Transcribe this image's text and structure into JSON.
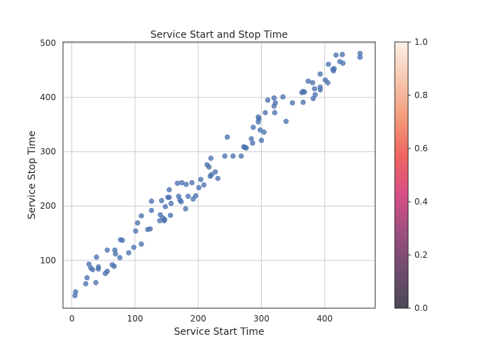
{
  "chart_data": {
    "type": "scatter",
    "title": "Service Start and Stop Time",
    "xlabel": "Service Start Time",
    "ylabel": "Service Stop Time",
    "xlim": [
      -14,
      480
    ],
    "ylim": [
      12,
      502
    ],
    "xticks": [
      0,
      100,
      200,
      300,
      400
    ],
    "yticks": [
      100,
      200,
      300,
      400,
      500
    ],
    "grid": true,
    "marker_color": "#4c72b0",
    "points": [
      {
        "x": 5,
        "y": 35
      },
      {
        "x": 6,
        "y": 42
      },
      {
        "x": 22,
        "y": 57
      },
      {
        "x": 24,
        "y": 68
      },
      {
        "x": 27,
        "y": 93
      },
      {
        "x": 30,
        "y": 86
      },
      {
        "x": 33,
        "y": 83
      },
      {
        "x": 38,
        "y": 59
      },
      {
        "x": 39,
        "y": 106
      },
      {
        "x": 42,
        "y": 88
      },
      {
        "x": 42,
        "y": 84
      },
      {
        "x": 53,
        "y": 76
      },
      {
        "x": 56,
        "y": 80
      },
      {
        "x": 56,
        "y": 119
      },
      {
        "x": 64,
        "y": 92
      },
      {
        "x": 67,
        "y": 89
      },
      {
        "x": 68,
        "y": 119
      },
      {
        "x": 69,
        "y": 112
      },
      {
        "x": 76,
        "y": 105
      },
      {
        "x": 77,
        "y": 138
      },
      {
        "x": 80,
        "y": 137
      },
      {
        "x": 90,
        "y": 114
      },
      {
        "x": 98,
        "y": 124
      },
      {
        "x": 101,
        "y": 154
      },
      {
        "x": 104,
        "y": 169
      },
      {
        "x": 110,
        "y": 130
      },
      {
        "x": 110,
        "y": 182
      },
      {
        "x": 120,
        "y": 157
      },
      {
        "x": 124,
        "y": 158
      },
      {
        "x": 126,
        "y": 192
      },
      {
        "x": 126,
        "y": 209
      },
      {
        "x": 139,
        "y": 173
      },
      {
        "x": 140,
        "y": 184
      },
      {
        "x": 142,
        "y": 210
      },
      {
        "x": 144,
        "y": 178
      },
      {
        "x": 146,
        "y": 173
      },
      {
        "x": 147,
        "y": 175
      },
      {
        "x": 148,
        "y": 199
      },
      {
        "x": 152,
        "y": 216
      },
      {
        "x": 154,
        "y": 216
      },
      {
        "x": 154,
        "y": 230
      },
      {
        "x": 156,
        "y": 183
      },
      {
        "x": 157,
        "y": 205
      },
      {
        "x": 167,
        "y": 242
      },
      {
        "x": 169,
        "y": 218
      },
      {
        "x": 171,
        "y": 211
      },
      {
        "x": 173,
        "y": 208
      },
      {
        "x": 174,
        "y": 243
      },
      {
        "x": 180,
        "y": 195
      },
      {
        "x": 181,
        "y": 240
      },
      {
        "x": 184,
        "y": 218
      },
      {
        "x": 190,
        "y": 243
      },
      {
        "x": 192,
        "y": 213
      },
      {
        "x": 196,
        "y": 219
      },
      {
        "x": 201,
        "y": 234
      },
      {
        "x": 204,
        "y": 249
      },
      {
        "x": 209,
        "y": 239
      },
      {
        "x": 214,
        "y": 276
      },
      {
        "x": 217,
        "y": 272
      },
      {
        "x": 219,
        "y": 255
      },
      {
        "x": 220,
        "y": 288
      },
      {
        "x": 221,
        "y": 258
      },
      {
        "x": 227,
        "y": 263
      },
      {
        "x": 231,
        "y": 251
      },
      {
        "x": 242,
        "y": 292
      },
      {
        "x": 246,
        "y": 327
      },
      {
        "x": 255,
        "y": 292
      },
      {
        "x": 268,
        "y": 292
      },
      {
        "x": 272,
        "y": 309
      },
      {
        "x": 274,
        "y": 308
      },
      {
        "x": 276,
        "y": 307
      },
      {
        "x": 284,
        "y": 324
      },
      {
        "x": 286,
        "y": 316
      },
      {
        "x": 287,
        "y": 345
      },
      {
        "x": 295,
        "y": 355
      },
      {
        "x": 295,
        "y": 364
      },
      {
        "x": 296,
        "y": 361
      },
      {
        "x": 298,
        "y": 340
      },
      {
        "x": 300,
        "y": 321
      },
      {
        "x": 304,
        "y": 336
      },
      {
        "x": 306,
        "y": 372
      },
      {
        "x": 310,
        "y": 395
      },
      {
        "x": 320,
        "y": 399
      },
      {
        "x": 320,
        "y": 384
      },
      {
        "x": 321,
        "y": 372
      },
      {
        "x": 322,
        "y": 390
      },
      {
        "x": 334,
        "y": 401
      },
      {
        "x": 339,
        "y": 356
      },
      {
        "x": 349,
        "y": 390
      },
      {
        "x": 364,
        "y": 409
      },
      {
        "x": 366,
        "y": 411
      },
      {
        "x": 366,
        "y": 391
      },
      {
        "x": 368,
        "y": 410
      },
      {
        "x": 374,
        "y": 430
      },
      {
        "x": 381,
        "y": 427
      },
      {
        "x": 382,
        "y": 398
      },
      {
        "x": 384,
        "y": 416
      },
      {
        "x": 385,
        "y": 405
      },
      {
        "x": 393,
        "y": 419
      },
      {
        "x": 393,
        "y": 414
      },
      {
        "x": 393,
        "y": 443
      },
      {
        "x": 401,
        "y": 432
      },
      {
        "x": 405,
        "y": 427
      },
      {
        "x": 406,
        "y": 461
      },
      {
        "x": 413,
        "y": 452
      },
      {
        "x": 414,
        "y": 449
      },
      {
        "x": 415,
        "y": 453
      },
      {
        "x": 418,
        "y": 478
      },
      {
        "x": 424,
        "y": 466
      },
      {
        "x": 428,
        "y": 479
      },
      {
        "x": 429,
        "y": 463
      },
      {
        "x": 456,
        "y": 474
      },
      {
        "x": 456,
        "y": 481
      }
    ],
    "colorbar": {
      "range": [
        0,
        1
      ],
      "ticks": [
        "0.0",
        "0.2",
        "0.4",
        "0.6",
        "0.8",
        "1.0"
      ],
      "colors": [
        "#4c4a57",
        "#6f4c6e",
        "#9e4f80",
        "#d84f86",
        "#ef6560",
        "#f39a7a",
        "#f6c7ad",
        "#fdf0e6"
      ]
    }
  }
}
